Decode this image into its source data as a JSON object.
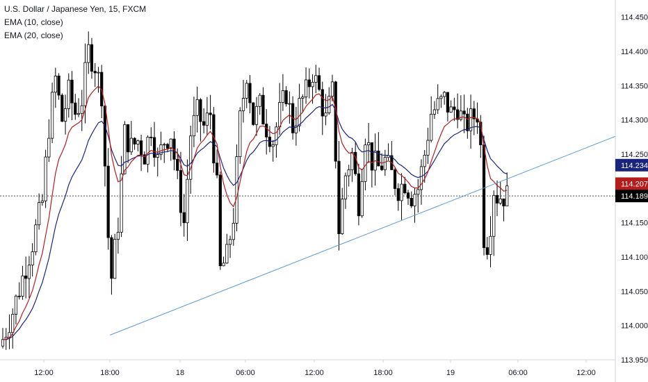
{
  "chart_data": {
    "type": "candlestick",
    "title": "U.S. Dollar / Japanese Yen, 15, FXCM",
    "indicators": [
      {
        "label": "EMA (10, close)",
        "color": "#b71c1c"
      },
      {
        "label": "EMA (20, close)",
        "color": "#1a237e"
      }
    ],
    "y_axis": {
      "position": "right",
      "ylim": [
        113.95,
        114.475
      ],
      "ticks": [
        "114.450",
        "114.400",
        "114.350",
        "114.300",
        "114.250",
        "114.200",
        "114.150",
        "114.100",
        "114.050",
        "114.000",
        "113.950"
      ]
    },
    "x_axis": {
      "ticks": [
        "12:00",
        "18:00",
        "18",
        "06:00",
        "12:00",
        "18:00",
        "19",
        "06:00",
        "12:00"
      ]
    },
    "price_badges": [
      {
        "label": "114.234",
        "value": 114.234,
        "color": "#1a237e"
      },
      {
        "label": "114.207",
        "value": 114.207,
        "color": "#b71c1c"
      },
      {
        "label": "114.189",
        "value": 114.189,
        "color": "#000000"
      }
    ],
    "last_price": 114.189,
    "trendline": {
      "from_price": 113.986,
      "to_price": 114.276,
      "color": "#5b9bd5"
    },
    "close_path": [
      [
        0,
        113.98
      ],
      [
        3,
        114.02
      ],
      [
        6,
        114.07
      ],
      [
        9,
        114.12
      ],
      [
        12,
        114.18
      ],
      [
        14,
        114.29
      ],
      [
        16,
        114.36
      ],
      [
        18,
        114.3
      ],
      [
        20,
        114.34
      ],
      [
        22,
        114.31
      ],
      [
        24,
        114.33
      ],
      [
        26,
        114.4
      ],
      [
        28,
        114.38
      ],
      [
        30,
        114.34
      ],
      [
        32,
        114.13
      ],
      [
        33,
        114.07
      ],
      [
        35,
        114.15
      ],
      [
        37,
        114.28
      ],
      [
        39,
        114.26
      ],
      [
        41,
        114.27
      ],
      [
        43,
        114.25
      ],
      [
        45,
        114.29
      ],
      [
        47,
        114.24
      ],
      [
        49,
        114.27
      ],
      [
        51,
        114.28
      ],
      [
        53,
        114.21
      ],
      [
        55,
        114.15
      ],
      [
        57,
        114.28
      ],
      [
        59,
        114.31
      ],
      [
        61,
        114.29
      ],
      [
        63,
        114.31
      ],
      [
        65,
        114.2
      ],
      [
        66,
        114.08
      ],
      [
        68,
        114.1
      ],
      [
        70,
        114.16
      ],
      [
        72,
        114.3
      ],
      [
        74,
        114.37
      ],
      [
        76,
        114.3
      ],
      [
        78,
        114.32
      ],
      [
        80,
        114.29
      ],
      [
        82,
        114.27
      ],
      [
        84,
        114.31
      ],
      [
        86,
        114.34
      ],
      [
        88,
        114.29
      ],
      [
        90,
        114.32
      ],
      [
        92,
        114.34
      ],
      [
        94,
        114.37
      ],
      [
        96,
        114.34
      ],
      [
        98,
        114.3
      ],
      [
        100,
        114.34
      ],
      [
        101,
        114.25
      ],
      [
        102,
        114.14
      ],
      [
        104,
        114.22
      ],
      [
        106,
        114.25
      ],
      [
        108,
        114.18
      ],
      [
        110,
        114.28
      ],
      [
        112,
        114.24
      ],
      [
        114,
        114.23
      ],
      [
        116,
        114.24
      ],
      [
        118,
        114.22
      ],
      [
        120,
        114.2
      ],
      [
        122,
        114.21
      ],
      [
        124,
        114.19
      ],
      [
        126,
        114.2
      ],
      [
        128,
        114.25
      ],
      [
        130,
        114.31
      ],
      [
        132,
        114.32
      ],
      [
        134,
        114.33
      ],
      [
        136,
        114.31
      ],
      [
        138,
        114.32
      ],
      [
        140,
        114.29
      ],
      [
        142,
        114.3
      ],
      [
        144,
        114.31
      ],
      [
        145,
        114.26
      ],
      [
        146,
        114.13
      ],
      [
        147,
        114.12
      ],
      [
        148,
        114.15
      ],
      [
        149,
        114.2
      ],
      [
        150,
        114.189
      ]
    ]
  }
}
